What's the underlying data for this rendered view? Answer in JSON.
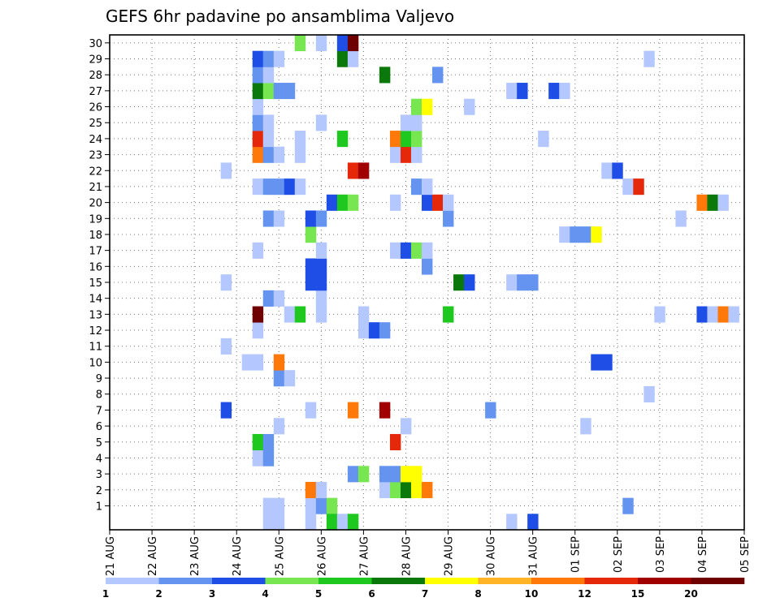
{
  "chart_data": {
    "type": "heatmap",
    "title": "GEFS 6hr padavine po ansamblima Valjevo",
    "xlabel": "",
    "ylabel": "",
    "x_tick_labels": [
      "21 AUG",
      "22 AUG",
      "23 AUG",
      "24 AUG",
      "25 AUG",
      "26 AUG",
      "27 AUG",
      "28 AUG",
      "29 AUG",
      "30 AUG",
      "31 AUG",
      "01 SEP",
      "02 SEP",
      "03 SEP",
      "04 SEP",
      "05 SEP"
    ],
    "y_tick_labels": [
      "1",
      "2",
      "3",
      "4",
      "5",
      "6",
      "7",
      "8",
      "9",
      "10",
      "11",
      "12",
      "13",
      "14",
      "15",
      "16",
      "17",
      "18",
      "19",
      "20",
      "21",
      "22",
      "23",
      "24",
      "25",
      "26",
      "27",
      "28",
      "29",
      "30"
    ],
    "time_step_hours": 6,
    "grid": true,
    "legend_position": "bottom",
    "colorbar": {
      "boundaries": [
        "1",
        "2",
        "3",
        "4",
        "5",
        "6",
        "7",
        "8",
        "10",
        "12",
        "15",
        "20"
      ],
      "colors": [
        "#b4c8ff",
        "#6494f0",
        "#1e4ee6",
        "#78e650",
        "#1ec81e",
        "#0a780a",
        "#ffff00",
        "#ffb428",
        "#ff780a",
        "#e6280a",
        "#a00000",
        "#6e0000"
      ]
    },
    "cells": [
      {
        "m": 1,
        "t": 15,
        "c": 1
      },
      {
        "m": 1,
        "t": 16,
        "c": 1
      },
      {
        "m": 1,
        "t": 19,
        "c": 1
      },
      {
        "m": 1,
        "t": 20,
        "c": 2
      },
      {
        "m": 1,
        "t": 21,
        "c": 4
      },
      {
        "m": 1,
        "t": 49,
        "c": 2
      },
      {
        "m": 2,
        "t": 19,
        "c": 9
      },
      {
        "m": 2,
        "t": 20,
        "c": 1
      },
      {
        "m": 2,
        "t": 26,
        "c": 1
      },
      {
        "m": 2,
        "t": 27,
        "c": 4
      },
      {
        "m": 2,
        "t": 28,
        "c": 6
      },
      {
        "m": 2,
        "t": 29,
        "c": 7
      },
      {
        "m": 2,
        "t": 30,
        "c": 9
      },
      {
        "m": 3,
        "t": 23,
        "c": 2
      },
      {
        "m": 3,
        "t": 24,
        "c": 4
      },
      {
        "m": 3,
        "t": 26,
        "c": 2
      },
      {
        "m": 3,
        "t": 27,
        "c": 2
      },
      {
        "m": 3,
        "t": 28,
        "c": 7
      },
      {
        "m": 3,
        "t": 29,
        "c": 7
      },
      {
        "m": 4,
        "t": 14,
        "c": 1
      },
      {
        "m": 4,
        "t": 15,
        "c": 2
      },
      {
        "m": 5,
        "t": 14,
        "c": 5
      },
      {
        "m": 5,
        "t": 15,
        "c": 2
      },
      {
        "m": 5,
        "t": 27,
        "c": 10
      },
      {
        "m": 6,
        "t": 16,
        "c": 1
      },
      {
        "m": 6,
        "t": 28,
        "c": 1
      },
      {
        "m": 6,
        "t": 45,
        "c": 1
      },
      {
        "m": 7,
        "t": 11,
        "c": 3
      },
      {
        "m": 7,
        "t": 19,
        "c": 1
      },
      {
        "m": 7,
        "t": 23,
        "c": 9
      },
      {
        "m": 7,
        "t": 26,
        "c": 11
      },
      {
        "m": 7,
        "t": 36,
        "c": 2
      },
      {
        "m": 8,
        "t": 51,
        "c": 1
      },
      {
        "m": 9,
        "t": 16,
        "c": 2
      },
      {
        "m": 9,
        "t": 17,
        "c": 1
      },
      {
        "m": 10,
        "t": 13,
        "c": 1
      },
      {
        "m": 10,
        "t": 14,
        "c": 1
      },
      {
        "m": 10,
        "t": 16,
        "c": 9
      },
      {
        "m": 10,
        "t": 46,
        "c": 3
      },
      {
        "m": 10,
        "t": 47,
        "c": 3
      },
      {
        "m": 11,
        "t": 11,
        "c": 1
      },
      {
        "m": 12,
        "t": 14,
        "c": 1
      },
      {
        "m": 12,
        "t": 24,
        "c": 1
      },
      {
        "m": 12,
        "t": 25,
        "c": 3
      },
      {
        "m": 12,
        "t": 26,
        "c": 2
      },
      {
        "m": 13,
        "t": 14,
        "c": 12
      },
      {
        "m": 13,
        "t": 17,
        "c": 1
      },
      {
        "m": 13,
        "t": 18,
        "c": 5
      },
      {
        "m": 13,
        "t": 20,
        "c": 1
      },
      {
        "m": 13,
        "t": 24,
        "c": 1
      },
      {
        "m": 13,
        "t": 32,
        "c": 5
      },
      {
        "m": 13,
        "t": 52,
        "c": 1
      },
      {
        "m": 13,
        "t": 56,
        "c": 3
      },
      {
        "m": 13,
        "t": 57,
        "c": 1
      },
      {
        "m": 13,
        "t": 58,
        "c": 9
      },
      {
        "m": 13,
        "t": 59,
        "c": 1
      },
      {
        "m": 14,
        "t": 15,
        "c": 2
      },
      {
        "m": 14,
        "t": 16,
        "c": 1
      },
      {
        "m": 14,
        "t": 20,
        "c": 1
      },
      {
        "m": 15,
        "t": 11,
        "c": 1
      },
      {
        "m": 15,
        "t": 19,
        "c": 3
      },
      {
        "m": 15,
        "t": 20,
        "c": 3
      },
      {
        "m": 15,
        "t": 33,
        "c": 6
      },
      {
        "m": 15,
        "t": 34,
        "c": 3
      },
      {
        "m": 15,
        "t": 38,
        "c": 1
      },
      {
        "m": 15,
        "t": 39,
        "c": 2
      },
      {
        "m": 15,
        "t": 40,
        "c": 2
      },
      {
        "m": 16,
        "t": 19,
        "c": 3
      },
      {
        "m": 16,
        "t": 20,
        "c": 3
      },
      {
        "m": 16,
        "t": 30,
        "c": 2
      },
      {
        "m": 17,
        "t": 14,
        "c": 1
      },
      {
        "m": 17,
        "t": 20,
        "c": 1
      },
      {
        "m": 17,
        "t": 27,
        "c": 1
      },
      {
        "m": 17,
        "t": 28,
        "c": 3
      },
      {
        "m": 17,
        "t": 29,
        "c": 4
      },
      {
        "m": 17,
        "t": 30,
        "c": 1
      },
      {
        "m": 18,
        "t": 19,
        "c": 4
      },
      {
        "m": 18,
        "t": 43,
        "c": 1
      },
      {
        "m": 18,
        "t": 44,
        "c": 2
      },
      {
        "m": 18,
        "t": 45,
        "c": 2
      },
      {
        "m": 18,
        "t": 46,
        "c": 7
      },
      {
        "m": 19,
        "t": 15,
        "c": 2
      },
      {
        "m": 19,
        "t": 16,
        "c": 1
      },
      {
        "m": 19,
        "t": 19,
        "c": 3
      },
      {
        "m": 19,
        "t": 20,
        "c": 2
      },
      {
        "m": 19,
        "t": 32,
        "c": 2
      },
      {
        "m": 19,
        "t": 54,
        "c": 1
      },
      {
        "m": 20,
        "t": 21,
        "c": 3
      },
      {
        "m": 20,
        "t": 22,
        "c": 5
      },
      {
        "m": 20,
        "t": 23,
        "c": 4
      },
      {
        "m": 20,
        "t": 27,
        "c": 1
      },
      {
        "m": 20,
        "t": 30,
        "c": 3
      },
      {
        "m": 20,
        "t": 31,
        "c": 10
      },
      {
        "m": 20,
        "t": 32,
        "c": 1
      },
      {
        "m": 20,
        "t": 56,
        "c": 9
      },
      {
        "m": 20,
        "t": 57,
        "c": 6
      },
      {
        "m": 20,
        "t": 58,
        "c": 1
      },
      {
        "m": 21,
        "t": 14,
        "c": 1
      },
      {
        "m": 21,
        "t": 15,
        "c": 2
      },
      {
        "m": 21,
        "t": 16,
        "c": 2
      },
      {
        "m": 21,
        "t": 17,
        "c": 3
      },
      {
        "m": 21,
        "t": 18,
        "c": 1
      },
      {
        "m": 21,
        "t": 29,
        "c": 2
      },
      {
        "m": 21,
        "t": 30,
        "c": 1
      },
      {
        "m": 21,
        "t": 49,
        "c": 1
      },
      {
        "m": 21,
        "t": 50,
        "c": 10
      },
      {
        "m": 22,
        "t": 11,
        "c": 1
      },
      {
        "m": 22,
        "t": 23,
        "c": 10
      },
      {
        "m": 22,
        "t": 24,
        "c": 11
      },
      {
        "m": 22,
        "t": 47,
        "c": 1
      },
      {
        "m": 22,
        "t": 48,
        "c": 3
      },
      {
        "m": 23,
        "t": 14,
        "c": 9
      },
      {
        "m": 23,
        "t": 15,
        "c": 2
      },
      {
        "m": 23,
        "t": 16,
        "c": 1
      },
      {
        "m": 23,
        "t": 18,
        "c": 1
      },
      {
        "m": 23,
        "t": 27,
        "c": 1
      },
      {
        "m": 23,
        "t": 28,
        "c": 10
      },
      {
        "m": 23,
        "t": 29,
        "c": 1
      },
      {
        "m": 24,
        "t": 14,
        "c": 10
      },
      {
        "m": 24,
        "t": 15,
        "c": 1
      },
      {
        "m": 24,
        "t": 18,
        "c": 1
      },
      {
        "m": 24,
        "t": 22,
        "c": 5
      },
      {
        "m": 24,
        "t": 27,
        "c": 9
      },
      {
        "m": 24,
        "t": 28,
        "c": 5
      },
      {
        "m": 24,
        "t": 29,
        "c": 4
      },
      {
        "m": 24,
        "t": 41,
        "c": 1
      },
      {
        "m": 25,
        "t": 14,
        "c": 2
      },
      {
        "m": 25,
        "t": 15,
        "c": 1
      },
      {
        "m": 25,
        "t": 20,
        "c": 1
      },
      {
        "m": 25,
        "t": 28,
        "c": 1
      },
      {
        "m": 25,
        "t": 29,
        "c": 1
      },
      {
        "m": 26,
        "t": 14,
        "c": 1
      },
      {
        "m": 26,
        "t": 29,
        "c": 4
      },
      {
        "m": 26,
        "t": 30,
        "c": 7
      },
      {
        "m": 26,
        "t": 34,
        "c": 1
      },
      {
        "m": 27,
        "t": 14,
        "c": 6
      },
      {
        "m": 27,
        "t": 15,
        "c": 4
      },
      {
        "m": 27,
        "t": 16,
        "c": 2
      },
      {
        "m": 27,
        "t": 17,
        "c": 2
      },
      {
        "m": 27,
        "t": 38,
        "c": 1
      },
      {
        "m": 27,
        "t": 39,
        "c": 3
      },
      {
        "m": 27,
        "t": 42,
        "c": 3
      },
      {
        "m": 27,
        "t": 43,
        "c": 1
      },
      {
        "m": 28,
        "t": 14,
        "c": 2
      },
      {
        "m": 28,
        "t": 15,
        "c": 1
      },
      {
        "m": 28,
        "t": 26,
        "c": 6
      },
      {
        "m": 28,
        "t": 31,
        "c": 2
      },
      {
        "m": 29,
        "t": 14,
        "c": 3
      },
      {
        "m": 29,
        "t": 15,
        "c": 2
      },
      {
        "m": 29,
        "t": 16,
        "c": 1
      },
      {
        "m": 29,
        "t": 22,
        "c": 6
      },
      {
        "m": 29,
        "t": 23,
        "c": 1
      },
      {
        "m": 29,
        "t": 51,
        "c": 1
      },
      {
        "m": 30,
        "t": 18,
        "c": 4
      },
      {
        "m": 30,
        "t": 20,
        "c": 1
      },
      {
        "m": 30,
        "t": 22,
        "c": 3
      },
      {
        "m": 30,
        "t": 23,
        "c": 12
      },
      {
        "m": 0,
        "t": 15,
        "c": 1
      },
      {
        "m": 0,
        "t": 16,
        "c": 1
      },
      {
        "m": 0,
        "t": 19,
        "c": 1
      },
      {
        "m": 0,
        "t": 21,
        "c": 5
      },
      {
        "m": 0,
        "t": 22,
        "c": 1
      },
      {
        "m": 0,
        "t": 23,
        "c": 5
      },
      {
        "m": 0,
        "t": 38,
        "c": 1
      },
      {
        "m": 0,
        "t": 40,
        "c": 3
      }
    ]
  }
}
